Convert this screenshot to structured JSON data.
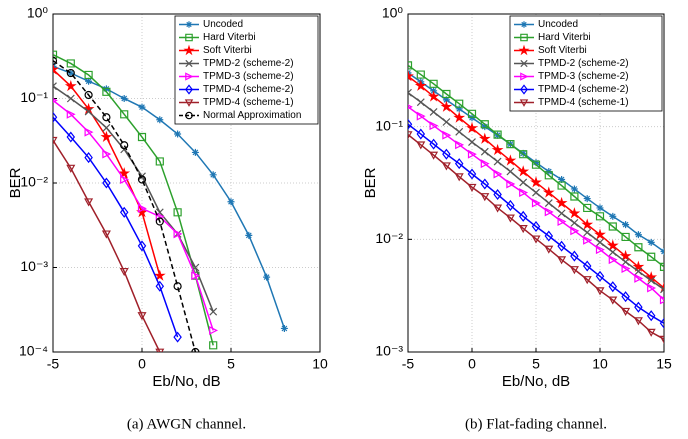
{
  "chart_data": [
    {
      "type": "line",
      "caption": "(a) AWGN channel.",
      "xlabel": "Eb/No, dB",
      "ylabel": "BER",
      "yscale": "log",
      "grid": true,
      "legend": "upper right",
      "xlim": [
        -5,
        10
      ],
      "xticks": [
        -5,
        0,
        5,
        10
      ],
      "ylim": [
        0.0001,
        1
      ],
      "yticks": [
        {
          "value": 0.0001,
          "label": "10⁻⁴"
        },
        {
          "value": 0.001,
          "label": "10⁻³"
        },
        {
          "value": 0.01,
          "label": "10⁻²"
        },
        {
          "value": 0.1,
          "label": "10⁻¹"
        },
        {
          "value": 1,
          "label": "10⁰"
        }
      ],
      "series": [
        {
          "name": "Uncoded",
          "color": "#1f77b4",
          "marker": "asterisk",
          "x": [
            -5,
            -4,
            -3,
            -2,
            -1,
            0,
            1,
            2,
            3,
            4,
            5,
            6,
            7,
            8
          ],
          "values": [
            0.24,
            0.2,
            0.16,
            0.13,
            0.1,
            0.079,
            0.056,
            0.038,
            0.023,
            0.0125,
            0.006,
            0.0024,
            0.00077,
            0.00019
          ]
        },
        {
          "name": "Hard Viterbi",
          "color": "#2ca02c",
          "marker": "square",
          "x": [
            -5,
            -4,
            -3,
            -2,
            -1,
            0,
            1,
            2,
            3,
            4
          ],
          "values": [
            0.33,
            0.26,
            0.19,
            0.12,
            0.065,
            0.035,
            0.018,
            0.0045,
            0.0008,
            0.00012
          ]
        },
        {
          "name": "Soft Viterbi",
          "color": "#ff0000",
          "marker": "star",
          "x": [
            -5,
            -4,
            -3,
            -2,
            -1,
            0,
            1
          ],
          "values": [
            0.22,
            0.14,
            0.075,
            0.035,
            0.013,
            0.0045,
            0.0008
          ]
        },
        {
          "name": "TPMD-2 (scheme-2)",
          "color": "#555555",
          "marker": "x",
          "x": [
            -5,
            -4,
            -3,
            -2,
            -1,
            0,
            1,
            2,
            3,
            4
          ],
          "values": [
            0.14,
            0.1,
            0.07,
            0.045,
            0.025,
            0.012,
            0.0045,
            0.0025,
            0.001,
            0.0003
          ]
        },
        {
          "name": "TPMD-3 (scheme-2)",
          "color": "#ff00ff",
          "marker": "triangle-right",
          "x": [
            -5,
            -4,
            -3,
            -2,
            -1,
            0,
            1,
            2,
            3,
            4
          ],
          "values": [
            0.095,
            0.065,
            0.04,
            0.022,
            0.011,
            0.005,
            0.004,
            0.0025,
            0.0008,
            0.00018
          ]
        },
        {
          "name": "TPMD-4 (scheme-2)",
          "color": "#0000ff",
          "marker": "diamond",
          "x": [
            -5,
            -4,
            -3,
            -2,
            -1,
            0,
            1,
            2
          ],
          "values": [
            0.06,
            0.035,
            0.02,
            0.01,
            0.0045,
            0.0018,
            0.0006,
            0.00015
          ]
        },
        {
          "name": "TPMD-4 (scheme-1)",
          "color": "#a0202a",
          "marker": "triangle-down",
          "x": [
            -5,
            -4,
            -3,
            -2,
            -1,
            0,
            1
          ],
          "values": [
            0.032,
            0.015,
            0.006,
            0.0025,
            0.0009,
            0.00027,
            0.0001
          ]
        },
        {
          "name": "Normal Approximation",
          "color": "#000000",
          "marker": "circle",
          "dashed": true,
          "x": [
            -5,
            -4,
            -3,
            -2,
            -1,
            0,
            1,
            2,
            3
          ],
          "values": [
            0.28,
            0.2,
            0.11,
            0.06,
            0.028,
            0.011,
            0.0035,
            0.0006,
            0.0001
          ]
        }
      ]
    },
    {
      "type": "line",
      "caption": "(b) Flat-fading channel.",
      "xlabel": "Eb/No, dB",
      "ylabel": "BER",
      "yscale": "log",
      "grid": true,
      "legend": "upper right",
      "xlim": [
        -5,
        15
      ],
      "xticks": [
        -5,
        0,
        5,
        10,
        15
      ],
      "ylim": [
        0.001,
        1
      ],
      "yticks": [
        {
          "value": 0.001,
          "label": "10⁻³"
        },
        {
          "value": 0.01,
          "label": "10⁻²"
        },
        {
          "value": 0.1,
          "label": "10⁻¹"
        },
        {
          "value": 1,
          "label": "10⁰"
        }
      ],
      "x": [
        -5,
        -4,
        -3,
        -2,
        -1,
        0,
        1,
        2,
        3,
        4,
        5,
        6,
        7,
        8,
        9,
        10,
        11,
        12,
        13,
        14,
        15
      ],
      "series": [
        {
          "name": "Uncoded",
          "color": "#1f77b4",
          "marker": "asterisk",
          "values": [
            0.3,
            0.25,
            0.208,
            0.173,
            0.144,
            0.12,
            0.1,
            0.084,
            0.07,
            0.058,
            0.048,
            0.04,
            0.034,
            0.028,
            0.023,
            0.019,
            0.016,
            0.0135,
            0.011,
            0.0094,
            0.0078
          ]
        },
        {
          "name": "Hard Viterbi",
          "color": "#2ca02c",
          "marker": "square",
          "values": [
            0.35,
            0.29,
            0.24,
            0.195,
            0.16,
            0.13,
            0.105,
            0.085,
            0.07,
            0.057,
            0.046,
            0.037,
            0.03,
            0.024,
            0.019,
            0.016,
            0.013,
            0.0105,
            0.0085,
            0.007,
            0.0057
          ]
        },
        {
          "name": "Soft Viterbi",
          "color": "#ff0000",
          "marker": "star",
          "values": [
            0.28,
            0.23,
            0.185,
            0.15,
            0.12,
            0.097,
            0.078,
            0.062,
            0.05,
            0.04,
            0.032,
            0.026,
            0.021,
            0.017,
            0.0135,
            0.011,
            0.0088,
            0.0071,
            0.0057,
            0.0046,
            0.0037
          ]
        },
        {
          "name": "TPMD-2 (scheme-2)",
          "color": "#555555",
          "marker": "x",
          "values": [
            0.2,
            0.165,
            0.135,
            0.11,
            0.09,
            0.073,
            0.06,
            0.049,
            0.04,
            0.032,
            0.026,
            0.021,
            0.017,
            0.014,
            0.0115,
            0.0094,
            0.0077,
            0.0063,
            0.0052,
            0.0043,
            0.0036
          ]
        },
        {
          "name": "TPMD-3 (scheme-2)",
          "color": "#ff00ff",
          "marker": "triangle-right",
          "values": [
            0.15,
            0.124,
            0.102,
            0.084,
            0.069,
            0.057,
            0.047,
            0.038,
            0.031,
            0.026,
            0.021,
            0.0175,
            0.0144,
            0.0119,
            0.0098,
            0.0081,
            0.0066,
            0.0055,
            0.0045,
            0.0037,
            0.0029
          ]
        },
        {
          "name": "TPMD-4 (scheme-2)",
          "color": "#0000ff",
          "marker": "diamond",
          "values": [
            0.105,
            0.086,
            0.07,
            0.057,
            0.047,
            0.038,
            0.031,
            0.025,
            0.02,
            0.016,
            0.013,
            0.0107,
            0.0087,
            0.0071,
            0.0058,
            0.0047,
            0.0038,
            0.0031,
            0.0025,
            0.0021,
            0.0018
          ]
        },
        {
          "name": "TPMD-4 (scheme-1)",
          "color": "#a0202a",
          "marker": "triangle-down",
          "values": [
            0.085,
            0.069,
            0.056,
            0.045,
            0.036,
            0.029,
            0.024,
            0.019,
            0.0155,
            0.0125,
            0.0101,
            0.0082,
            0.0066,
            0.0054,
            0.0044,
            0.0035,
            0.0029,
            0.0023,
            0.0019,
            0.0015,
            0.0013
          ]
        }
      ]
    }
  ]
}
